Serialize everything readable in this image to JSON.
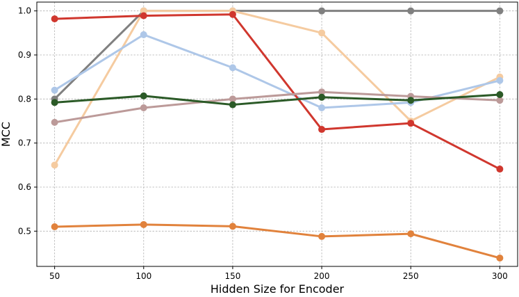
{
  "chart_data": {
    "type": "line",
    "title": "",
    "xlabel": "Hidden Size for Encoder",
    "ylabel": "MCC",
    "x": [
      50,
      100,
      150,
      200,
      250,
      300
    ],
    "x_ticks": [
      "50",
      "100",
      "150",
      "200",
      "250",
      "300"
    ],
    "y_ticks": [
      "0.5",
      "0.6",
      "0.7",
      "0.8",
      "0.9",
      "1.0"
    ],
    "xlim": [
      40,
      310
    ],
    "ylim": [
      0.42,
      1.02
    ],
    "grid": true,
    "legend": "none",
    "series": [
      {
        "color": "#808080",
        "values": [
          0.8,
          1.0,
          1.0,
          1.0,
          1.0,
          1.0
        ]
      },
      {
        "color": "#F5CBA0",
        "values": [
          0.65,
          1.0,
          1.0,
          0.95,
          0.75,
          0.85
        ]
      },
      {
        "color": "#AEC7E8",
        "values": [
          0.82,
          0.946,
          0.871,
          0.78,
          0.792,
          0.842
        ]
      },
      {
        "color": "#D0372E",
        "values": [
          0.982,
          0.989,
          0.992,
          0.731,
          0.745,
          0.641
        ]
      },
      {
        "color": "#BC9A99",
        "values": [
          0.747,
          0.78,
          0.8,
          0.816,
          0.806,
          0.797
        ]
      },
      {
        "color": "#2B5A27",
        "values": [
          0.792,
          0.807,
          0.787,
          0.804,
          0.797,
          0.81
        ]
      },
      {
        "color": "#E1823C",
        "values": [
          0.51,
          0.515,
          0.511,
          0.488,
          0.494,
          0.439
        ]
      }
    ]
  }
}
